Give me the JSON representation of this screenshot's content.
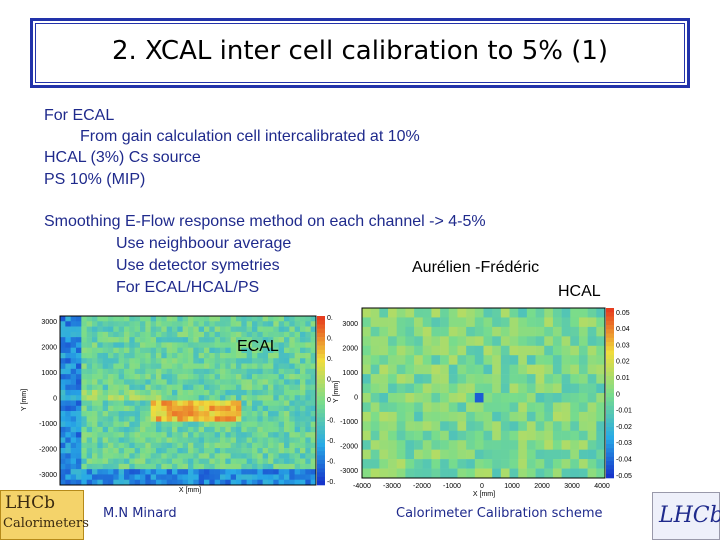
{
  "title": "2. XCAL inter cell calibration to 5% (1)",
  "body": {
    "lines": [
      "For ECAL",
      "From gain calculation cell intercalibrated at 10%",
      "HCAL (3%) Cs source",
      "PS 10% (MIP)",
      "Smoothing E-Flow response  method on each channel  -> 4-5%",
      "Use neighboour average",
      "Use detector symetries",
      "For ECAL/HCAL/PS"
    ],
    "authors": "Aurélien -Frédéric"
  },
  "ecal": {
    "label": "ECAL",
    "xlabel": "X [mm]",
    "ylabel": "Y [mm]",
    "yticks": [
      "3000",
      "2000",
      "1000",
      "0",
      "-1000",
      "-2000",
      "-3000"
    ],
    "colorbar": [
      "0.",
      "0.",
      "0.",
      "0.",
      "0",
      "-0.",
      "-0.",
      "-0.",
      "-0."
    ]
  },
  "hcal": {
    "label": "HCAL",
    "xlabel": "X [mm]",
    "ylabel": "Y [mm]",
    "yticks": [
      "3000",
      "2000",
      "1000",
      "0",
      "-1000",
      "-2000",
      "-3000"
    ],
    "xticks": [
      "-4000",
      "-3000",
      "-2000",
      "-1000",
      "0",
      "1000",
      "2000",
      "3000",
      "4000"
    ],
    "colorbar": [
      "0.05",
      "0.04",
      "0.03",
      "0.02",
      "0.01",
      "0",
      "-0.01",
      "-0.02",
      "-0.03",
      "-0.04",
      "-0.05"
    ]
  },
  "footer": {
    "left_logo": [
      "LHCb",
      "Calorimeters"
    ],
    "author": "M.N Minard",
    "caption": "Calorimeter Calibration scheme",
    "right_logo": "LHCb"
  }
}
